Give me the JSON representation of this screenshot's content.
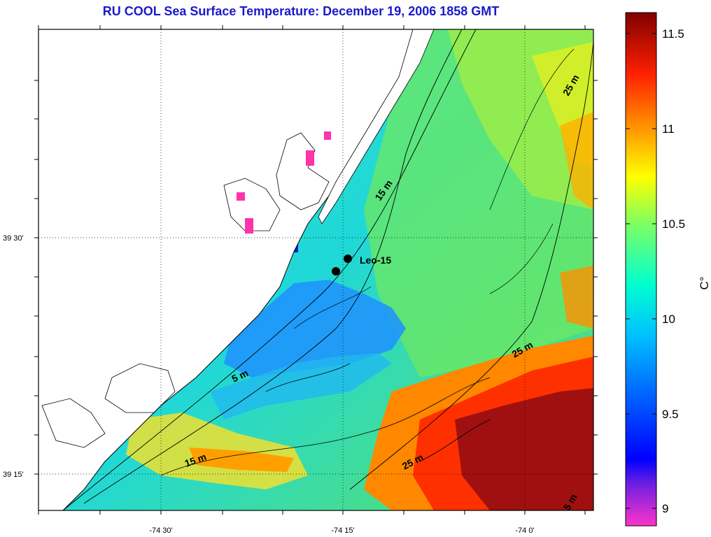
{
  "title": "RU COOL  Sea Surface Temperature:  December 19, 2006 1858 GMT",
  "map": {
    "lat_labels": [
      "39 30'",
      "39 15'"
    ],
    "lon_labels": [
      "-74 30'",
      "-74 15'",
      "-74 0'"
    ],
    "contour_labels": [
      "25 m",
      "15 m",
      "5 m",
      "25 m",
      "15 m",
      "25 m",
      "5 m"
    ],
    "station_label": "Leo-15",
    "ocean_color": "#22d8c8",
    "land_color": "#ffffff"
  },
  "colorbar": {
    "unit": "C°",
    "tick_labels": [
      "11.5",
      "11",
      "10.5",
      "10",
      "9.5",
      "9"
    ],
    "range": [
      8.9,
      11.6
    ],
    "colors": [
      "#ff33cc",
      "#0000ff",
      "#00ffff",
      "#ffff00",
      "#ff0000",
      "#800000"
    ]
  }
}
